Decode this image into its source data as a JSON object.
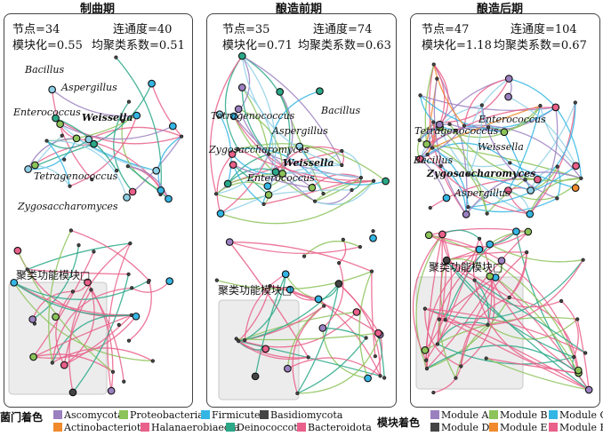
{
  "panels": [
    {
      "title": "制曲期",
      "nodes_label": "节点=34",
      "connectivity_label": "连通度=40",
      "modularity_label": "模块化=0.55",
      "clustering_label": "均聚类系数=0.51",
      "genera": [
        "Bacillus",
        "Aspergillus",
        "Enterococcus",
        "Weissella",
        "Tetragenococcus",
        "Zygosaccharomyces"
      ],
      "cluster_label": "聚类功能模块□"
    },
    {
      "title": "酿造前期",
      "nodes_label": "节点=35",
      "connectivity_label": "连通度=74",
      "modularity_label": "模块化=0.71",
      "clustering_label": "均聚类系数=0.63",
      "genera": [
        "Tetragenococcus",
        "Bacillus",
        "Aspergillus",
        "Zygosaccharomyces",
        "Weissella",
        "Enterococcus"
      ],
      "cluster_label": "聚类功能模块□"
    },
    {
      "title": "酿造后期",
      "nodes_label": "节点=47",
      "connectivity_label": "连通度=104",
      "modularity_label": "模块化=1.18",
      "clustering_label": "均聚类系数=0.67",
      "genera": [
        "Enterococcus",
        "Tetragenococcus",
        "Weissella",
        "Bacillus",
        "Zygosaccharomyces",
        "Aspergillus"
      ],
      "cluster_label": "聚类功能模块□"
    }
  ],
  "legend_phylum": {
    "title": "菌门着色",
    "items": [
      {
        "label": "Ascomycota",
        "color": "#9b80c0"
      },
      {
        "label": "Proteobacteria",
        "color": "#8cc35a"
      },
      {
        "label": "Firmicutes",
        "color": "#34b6e4"
      },
      {
        "label": "Basidiomycota",
        "color": "#444444"
      },
      {
        "label": "Actinobacteriota",
        "color": "#f08a2c"
      },
      {
        "label": "Halanaerobiaeota",
        "color": "#e9608a"
      },
      {
        "label": "Deinococcota",
        "color": "#2aa888"
      },
      {
        "label": "Bacteroidota",
        "color": "#e9608a"
      }
    ]
  },
  "legend_module": {
    "title": "模块着色",
    "items": [
      {
        "label": "Module A",
        "color": "#9b80c0"
      },
      {
        "label": "Module B",
        "color": "#8cc35a"
      },
      {
        "label": "Module C",
        "color": "#34b6e4"
      },
      {
        "label": "Module D",
        "color": "#444444"
      },
      {
        "label": "Module E",
        "color": "#f08a2c"
      },
      {
        "label": "Module F",
        "color": "#e9608a"
      }
    ]
  },
  "colors": {
    "purple": "#9b80c0",
    "green": "#8cc35a",
    "blue": "#34b6e4",
    "dark": "#444444",
    "orange": "#f08a2c",
    "pink": "#e9608a",
    "teal": "#2aa888",
    "lightblue": "#8fd0e6"
  }
}
